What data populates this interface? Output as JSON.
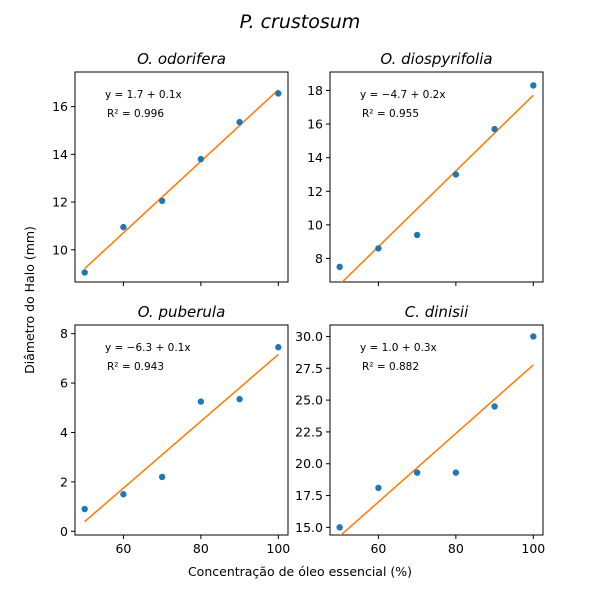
{
  "figure": {
    "suptitle": "P. crustosum",
    "xlabel": "Concentração de óleo essencial (%)",
    "ylabel": "Diâmetro do Halo (mm)"
  },
  "colors": {
    "points": "#1f77b4",
    "fit": "#ff7f0e"
  },
  "chart_data": [
    {
      "type": "scatter",
      "title": "O. odorifera",
      "x": [
        50,
        60,
        70,
        80,
        90,
        100
      ],
      "y": [
        9.05,
        10.95,
        12.05,
        13.8,
        15.35,
        16.55
      ],
      "fit": {
        "intercept": 1.7,
        "slope": 0.1
      },
      "equation": "y = 1.7 + 0.1x",
      "r2": "R² = 0.996",
      "xticks": [
        60,
        80,
        100
      ],
      "yticks": [
        10,
        12,
        14,
        16
      ],
      "ylim": [
        8.65,
        17.45
      ],
      "xlim": [
        47.5,
        102.5
      ],
      "show_xticklabels": false
    },
    {
      "type": "scatter",
      "title": "O. diospyrifolia",
      "x": [
        50,
        60,
        70,
        80,
        90,
        100
      ],
      "y": [
        7.5,
        8.6,
        9.4,
        13.0,
        15.7,
        18.3
      ],
      "fit": {
        "intercept": -4.7,
        "slope": 0.2
      },
      "equation": "y = −4.7 + 0.2x",
      "r2": "R² = 0.955",
      "xticks": [
        60,
        80,
        100
      ],
      "yticks": [
        8,
        10,
        12,
        14,
        16,
        18
      ],
      "ylim": [
        6.6,
        19.1
      ],
      "xlim": [
        47.5,
        102.5
      ],
      "show_xticklabels": false
    },
    {
      "type": "scatter",
      "title": "O. puberula",
      "x": [
        50,
        60,
        70,
        80,
        90,
        100
      ],
      "y": [
        0.9,
        1.5,
        2.2,
        5.25,
        5.35,
        7.45
      ],
      "fit": {
        "intercept": -6.3,
        "slope": 0.1
      },
      "equation": "y = −6.3 + 0.1x",
      "r2": "R² = 0.943",
      "xticks": [
        60,
        80,
        100
      ],
      "yticks": [
        0,
        2,
        4,
        6,
        8
      ],
      "ylim": [
        -0.15,
        8.35
      ],
      "xlim": [
        47.5,
        102.5
      ],
      "show_xticklabels": true
    },
    {
      "type": "scatter",
      "title": "C. dinisii",
      "x": [
        50,
        60,
        70,
        80,
        90,
        100
      ],
      "y": [
        15.0,
        18.1,
        19.3,
        19.3,
        24.5,
        30.0
      ],
      "fit": {
        "intercept": 1.0,
        "slope": 0.3
      },
      "equation": "y = 1.0 + 0.3x",
      "r2": "R² = 0.882",
      "xticks": [
        60,
        80,
        100
      ],
      "yticks": [
        15.0,
        17.5,
        20.0,
        22.5,
        25.0,
        27.5,
        30.0
      ],
      "ytick_labels": [
        "15.0",
        "17.5",
        "20.0",
        "22.5",
        "25.0",
        "27.5",
        "30.0"
      ],
      "ylim": [
        14.4,
        30.9
      ],
      "xlim": [
        47.5,
        102.5
      ],
      "show_xticklabels": true
    }
  ]
}
